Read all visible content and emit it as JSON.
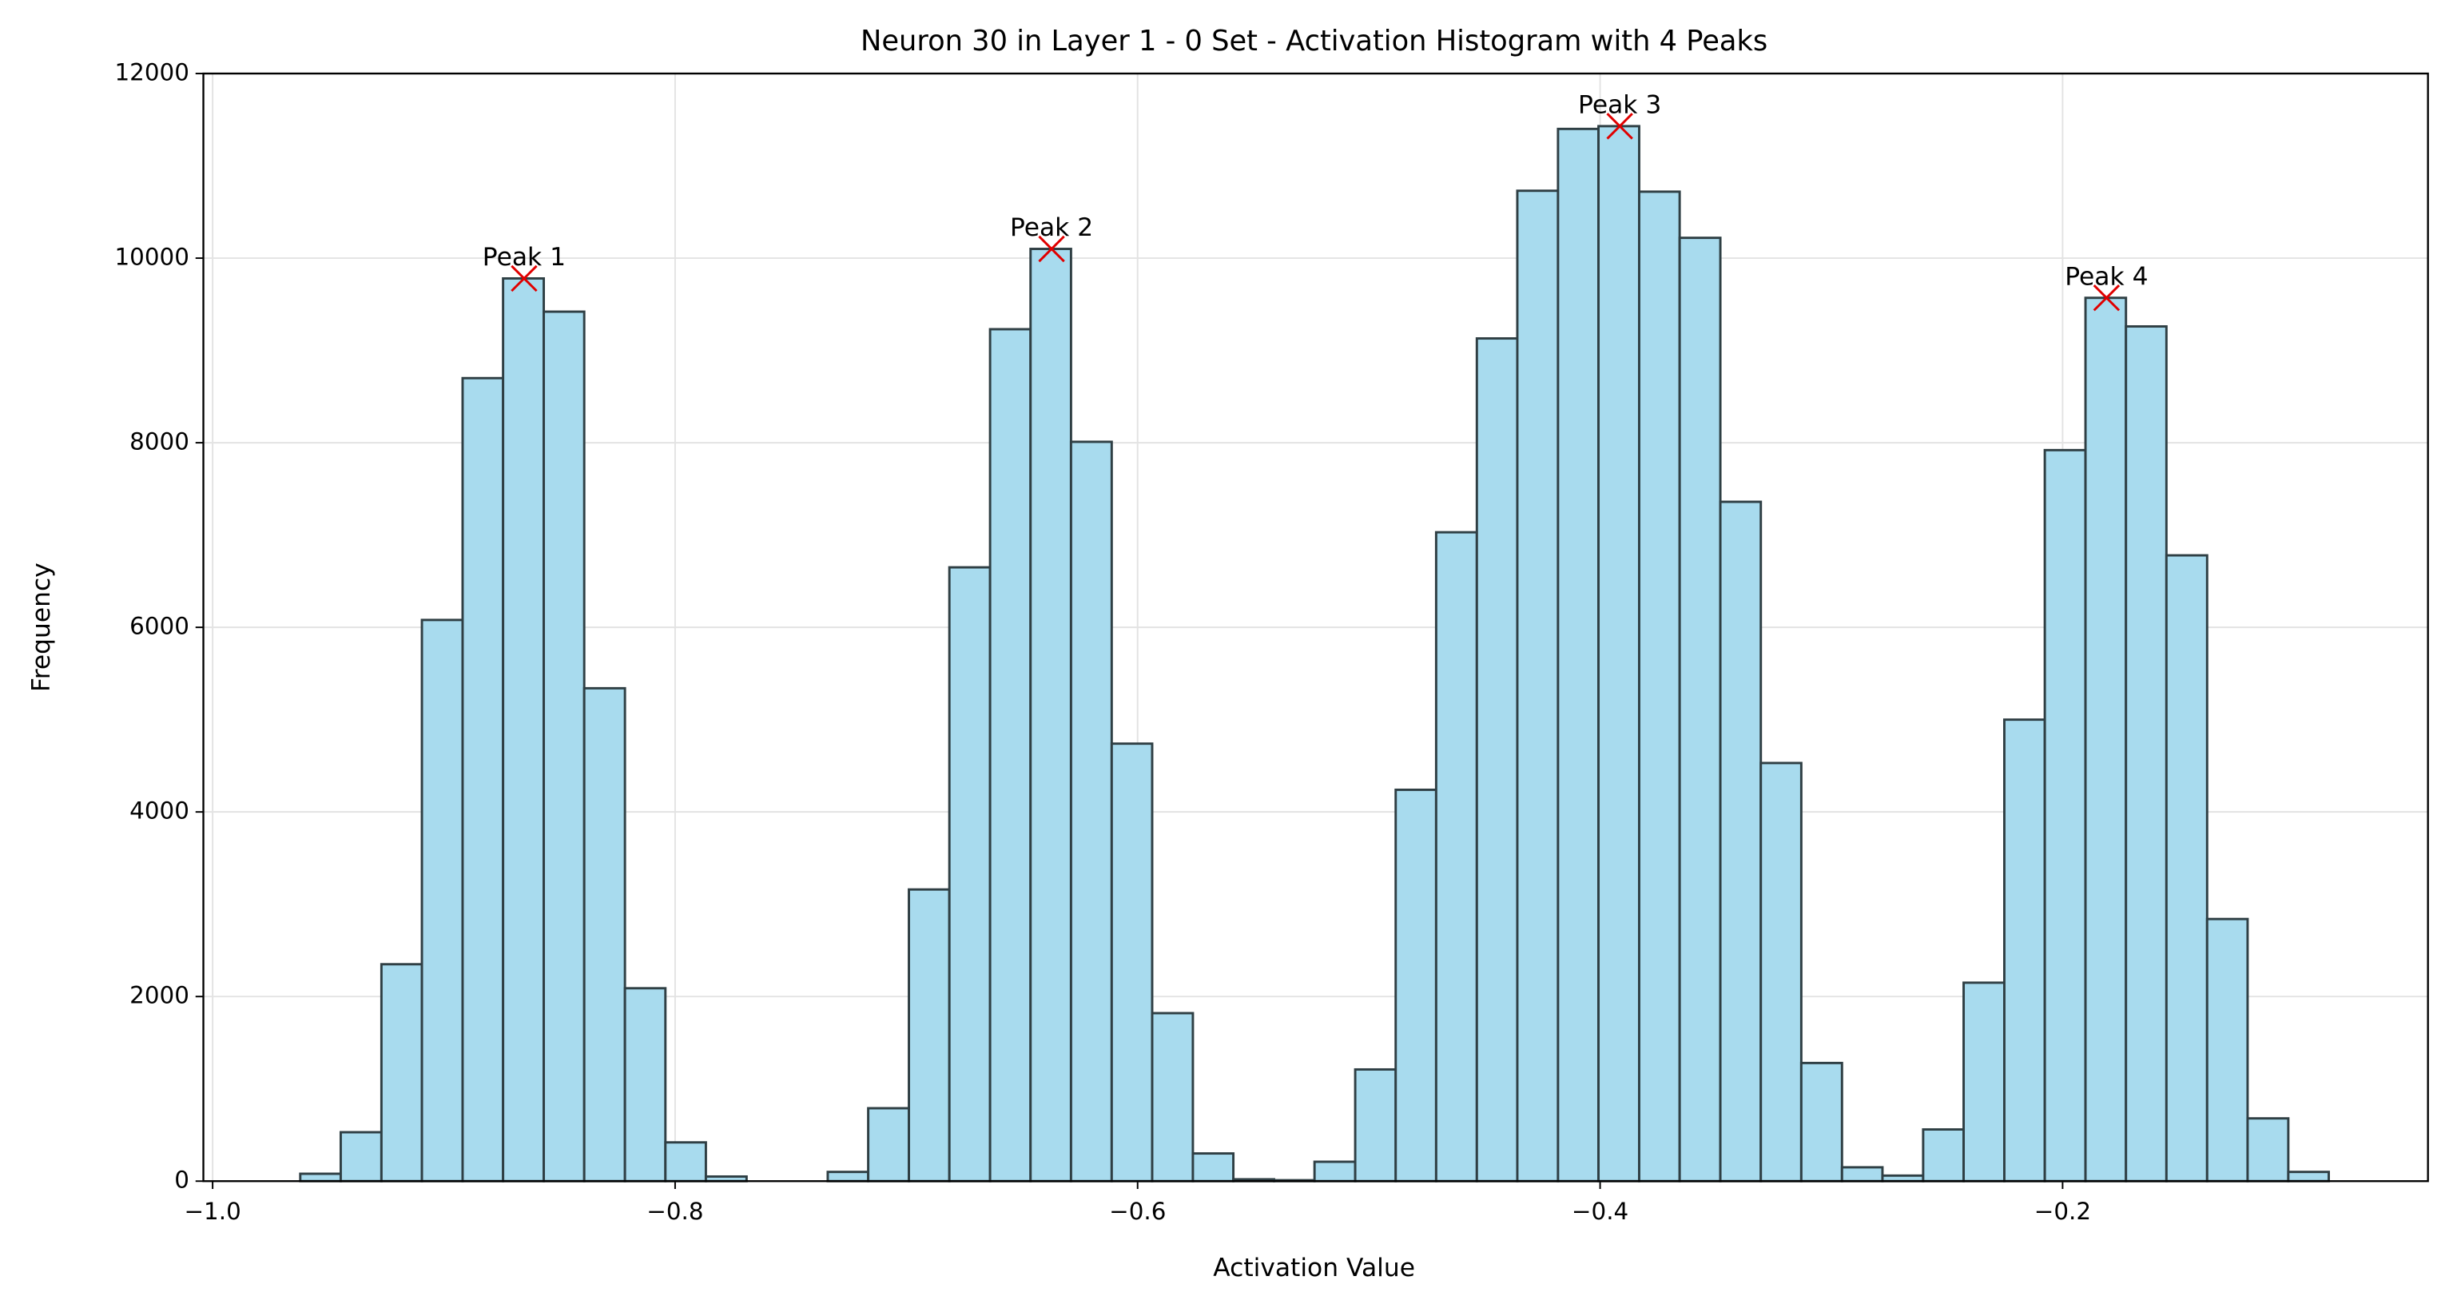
{
  "chart_data": {
    "type": "histogram",
    "title": "Neuron 30 in Layer 1 - 0 Set - Activation Histogram with 4 Peaks",
    "x_label": "Activation Value",
    "y_label": "Frequency",
    "bins": [
      -0.9621,
      -0.9446,
      -0.927,
      -0.9095,
      -0.8919,
      -0.8744,
      -0.8568,
      -0.8393,
      -0.8217,
      -0.8042,
      -0.7867,
      -0.7691,
      -0.7516,
      -0.734,
      -0.7165,
      -0.6989,
      -0.6814,
      -0.6638,
      -0.6463,
      -0.6288,
      -0.6112,
      -0.5937,
      -0.5761,
      -0.5586,
      -0.541,
      -0.5235,
      -0.5059,
      -0.4884,
      -0.4709,
      -0.4533,
      -0.4358,
      -0.4182,
      -0.4007,
      -0.3831,
      -0.3656,
      -0.348,
      -0.3305,
      -0.313,
      -0.2954,
      -0.2779,
      -0.2603,
      -0.2428,
      -0.2252,
      -0.2077,
      -0.1901,
      -0.1726,
      -0.1551,
      -0.1375,
      -0.12,
      -0.1024,
      -0.0849
    ],
    "values": [
      80,
      530,
      2350,
      6080,
      8700,
      9780,
      9420,
      5340,
      2090,
      420,
      50,
      0,
      0,
      100,
      790,
      3160,
      6650,
      9230,
      10100,
      8010,
      4740,
      1820,
      300,
      20,
      10,
      210,
      1210,
      4240,
      7030,
      9130,
      10730,
      11400,
      11430,
      10720,
      10220,
      7360,
      4530,
      1280,
      150,
      60,
      560,
      2150,
      5000,
      7920,
      9570,
      9260,
      6780,
      2840,
      680,
      100
    ],
    "color": "#a8dbee",
    "edge_color": "#2f3f44",
    "peaks": {
      "x": [
        -0.8653,
        -0.6372,
        -0.3915,
        -0.181
      ],
      "values": [
        9780,
        10100,
        11430,
        9570
      ],
      "labels": [
        "Peak 1",
        "Peak 2",
        "Peak 3",
        "Peak 4"
      ],
      "color": "#e00000"
    },
    "xlim": [
      -1.004,
      -0.042
    ],
    "ylim": [
      0,
      12000
    ],
    "xticks": [
      {
        "value": -1.0,
        "label": "−1.0"
      },
      {
        "value": -0.8,
        "label": "−0.8"
      },
      {
        "value": -0.6,
        "label": "−0.6"
      },
      {
        "value": -0.4,
        "label": "−0.4"
      },
      {
        "value": -0.2,
        "label": "−0.2"
      }
    ],
    "yticks": [
      0,
      2000,
      4000,
      6000,
      8000,
      10000,
      12000
    ],
    "grid": true
  }
}
